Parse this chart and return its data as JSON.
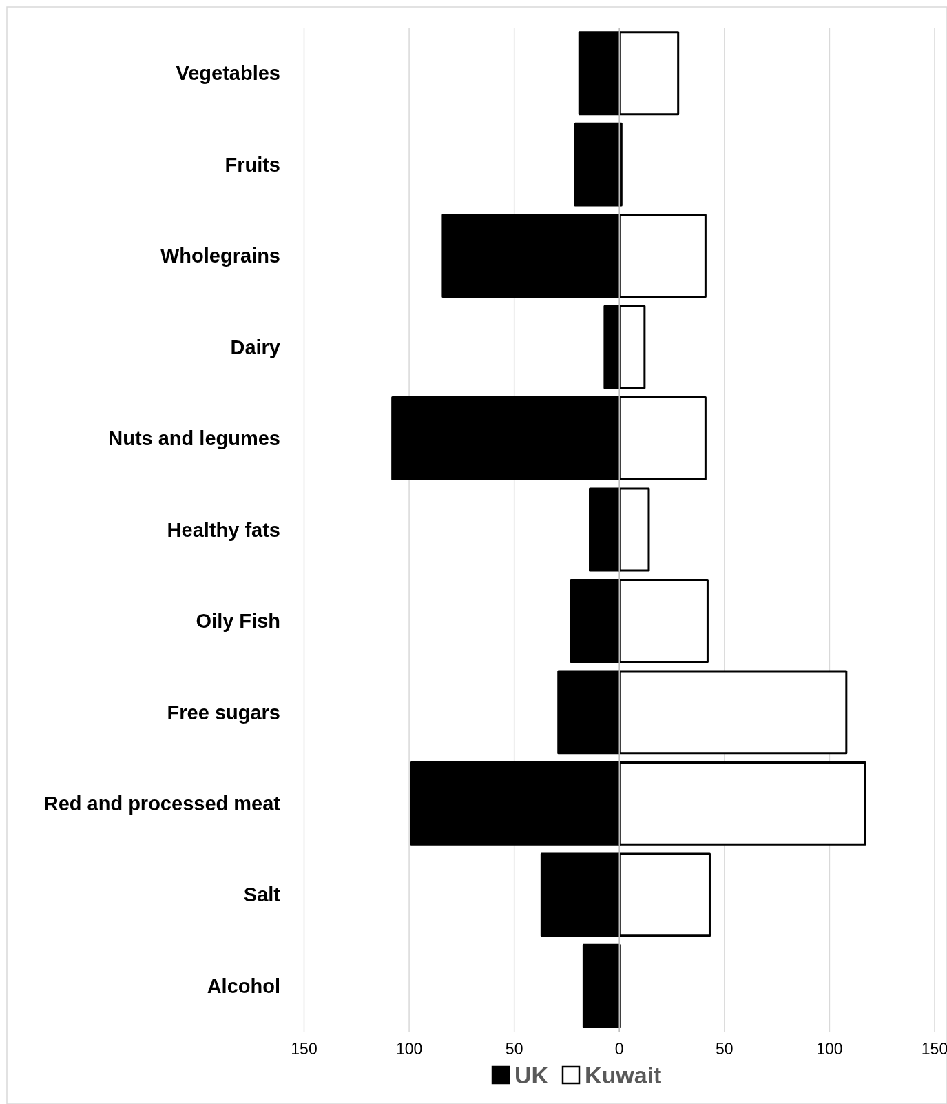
{
  "chart_data": {
    "type": "bar",
    "orientation": "horizontal",
    "stacked": true,
    "categories": [
      "Vegetables",
      "Fruits",
      "Wholegrains",
      "Dairy",
      "Nuts and legumes",
      "Healthy fats",
      "Oily Fish",
      "Free sugars",
      "Red and processed meat",
      "Salt",
      "Alcohol"
    ],
    "series": [
      {
        "name": "UK",
        "color": "#000000",
        "values": [
          -19,
          -21,
          -84,
          -7,
          -108,
          -14,
          -23,
          -29,
          -99,
          -37,
          -17
        ]
      },
      {
        "name": "Kuwait",
        "color": "#ffffff",
        "values": [
          28,
          1,
          41,
          12,
          41,
          14,
          42,
          108,
          117,
          43,
          0
        ]
      }
    ],
    "xlim": [
      -150,
      150
    ],
    "xticks": [
      {
        "value": -150,
        "label": "150"
      },
      {
        "value": -100,
        "label": "100"
      },
      {
        "value": -50,
        "label": "50"
      },
      0,
      50,
      100,
      150
    ],
    "grid": "x",
    "legend": "bottom"
  }
}
